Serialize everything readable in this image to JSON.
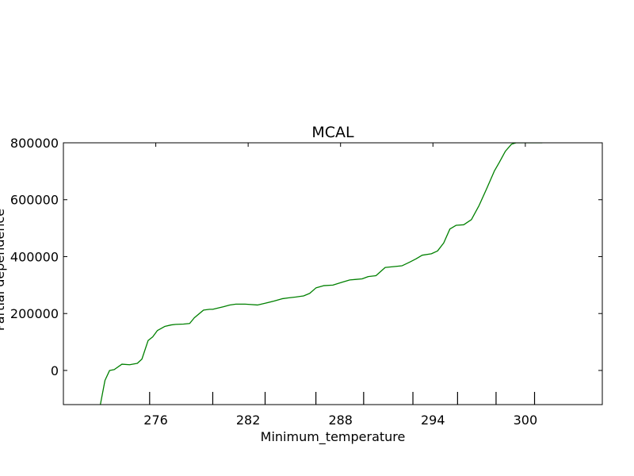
{
  "chart_data": {
    "type": "line",
    "title": "MCAL",
    "xlabel": "Minimum_temperature",
    "ylabel": "Partial dependence",
    "xlim": [
      270.0,
      305.0
    ],
    "ylim": [
      -120000,
      800000
    ],
    "x_ticks": [
      276,
      282,
      288,
      294,
      300
    ],
    "y_ticks": [
      0,
      200000,
      400000,
      600000,
      800000
    ],
    "rug_ticks": [
      275.6,
      279.7,
      283.1,
      286.4,
      289.5,
      292.7,
      295.6,
      298.1,
      300.6
    ],
    "grid": false,
    "legend": "none",
    "line_color": "#008000",
    "series": [
      {
        "name": "MCAL",
        "x": [
          272.4,
          272.7,
          273.0,
          273.3,
          273.8,
          274.3,
          274.8,
          275.1,
          275.5,
          275.8,
          276.1,
          276.6,
          277.0,
          277.3,
          277.8,
          278.2,
          278.5,
          279.1,
          279.5,
          279.7,
          280.1,
          280.4,
          280.8,
          281.2,
          281.5,
          281.8,
          282.1,
          282.6,
          283.1,
          283.7,
          284.2,
          284.6,
          285.1,
          285.6,
          286.0,
          286.4,
          286.9,
          287.5,
          288.1,
          288.6,
          289.0,
          289.4,
          289.8,
          290.3,
          290.9,
          291.5,
          292.0,
          292.5,
          292.9,
          293.3,
          293.9,
          294.3,
          294.7,
          295.1,
          295.5,
          296.0,
          296.5,
          297.0,
          297.5,
          298.0,
          298.3,
          298.7,
          299.1,
          299.4,
          299.8,
          300.1,
          300.4,
          300.8,
          301.1
        ],
        "values": [
          -120000,
          -35000,
          0,
          3000,
          22000,
          20000,
          25000,
          40000,
          105000,
          118000,
          140000,
          155000,
          160000,
          162000,
          163000,
          165000,
          185000,
          212000,
          215000,
          215000,
          220000,
          224000,
          230000,
          233000,
          233000,
          233000,
          232000,
          230000,
          236000,
          244000,
          252000,
          255000,
          258000,
          262000,
          271000,
          290000,
          298000,
          300000,
          310000,
          318000,
          320000,
          322000,
          330000,
          333000,
          362000,
          365000,
          368000,
          381000,
          392000,
          405000,
          410000,
          420000,
          448000,
          497000,
          510000,
          512000,
          530000,
          580000,
          640000,
          702000,
          730000,
          770000,
          795000,
          800000,
          800000,
          800000,
          800000,
          800000,
          800000
        ]
      }
    ]
  }
}
